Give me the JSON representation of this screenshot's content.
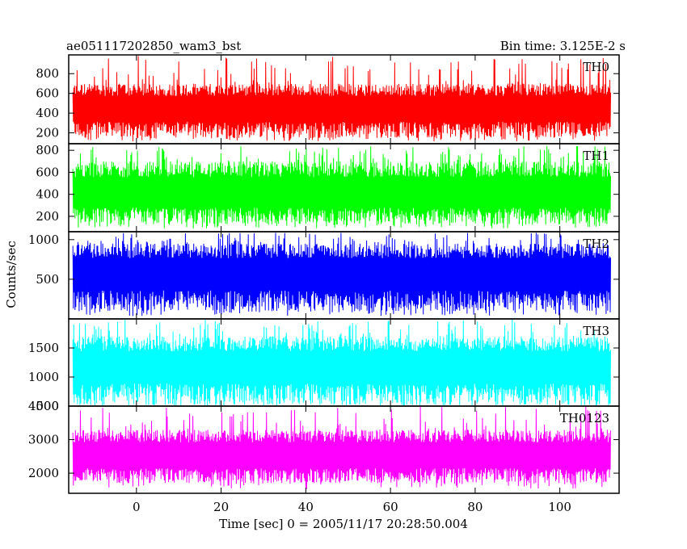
{
  "chart_data": {
    "type": "line",
    "title": "ae051117202850_wam3_bst",
    "bin_time": "Bin time: 3.125E-2 s",
    "xlabel": "Time [sec] 0 = 2005/11/17 20:28:50.004",
    "ylabel": "Counts/sec",
    "xlim": [
      -16,
      114
    ],
    "x_ticks": [
      0,
      20,
      40,
      60,
      80,
      100
    ],
    "x_data_range": [
      -15,
      112
    ],
    "panels": [
      {
        "name": "TH0",
        "color": "#ff0000",
        "ylim": [
          90,
          990
        ],
        "yticks": [
          200,
          400,
          600,
          800
        ],
        "ytick_labels": [
          "200",
          "400",
          "600",
          "800"
        ],
        "mean": 420,
        "low": 150,
        "high": 700,
        "spike_min": 700,
        "spike_max": 985
      },
      {
        "name": "TH1",
        "color": "#00ff00",
        "ylim": [
          60,
          860
        ],
        "yticks": [
          200,
          400,
          600,
          800
        ],
        "ytick_labels": [
          "200",
          "400",
          "600",
          "800"
        ],
        "mean": 380,
        "low": 125,
        "high": 700,
        "spike_min": 700,
        "spike_max": 840
      },
      {
        "name": "TH2",
        "color": "#0000ff",
        "ylim": [
          0,
          1100
        ],
        "yticks": [
          500,
          1000
        ],
        "ytick_labels": [
          "500",
          "1000"
        ],
        "mean": 540,
        "low": 90,
        "high": 950,
        "spike_min": 950,
        "spike_max": 1090
      },
      {
        "name": "TH3",
        "color": "#00ffff",
        "ylim": [
          500,
          2000
        ],
        "yticks": [
          500,
          1000,
          1500
        ],
        "ytick_labels": [
          "500",
          "1000",
          "1500"
        ],
        "mean": 1130,
        "low": 530,
        "high": 1700,
        "spike_min": 1700,
        "spike_max": 1990
      },
      {
        "name": "TH0123",
        "color": "#ff00ff",
        "ylim": [
          1400,
          4000
        ],
        "yticks": [
          2000,
          3000,
          4000
        ],
        "ytick_labels": [
          "2000",
          "3000",
          "4000"
        ],
        "mean": 2450,
        "low": 1700,
        "high": 3300,
        "spike_min": 3300,
        "spike_max": 3990
      }
    ]
  }
}
